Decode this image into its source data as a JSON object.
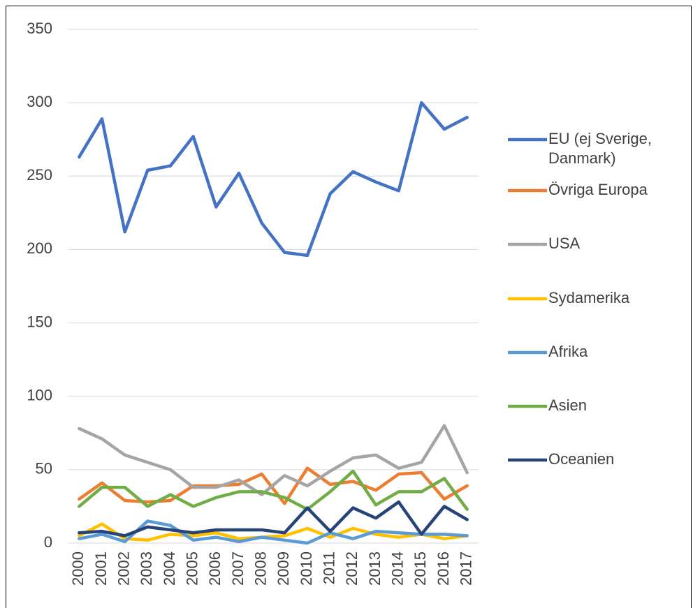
{
  "chart_data": {
    "type": "line",
    "categories": [
      "2000",
      "2001",
      "2002",
      "2003",
      "2004",
      "2005",
      "2006",
      "2007",
      "2008",
      "2009",
      "2010",
      "2011",
      "2012",
      "2013",
      "2014",
      "2015",
      "2016",
      "2017"
    ],
    "series": [
      {
        "name": "EU (ej Sverige, Danmark)",
        "color": "#4472c4",
        "values": [
          263,
          289,
          212,
          254,
          257,
          277,
          229,
          252,
          218,
          198,
          196,
          238,
          253,
          246,
          240,
          300,
          282,
          290
        ]
      },
      {
        "name": "Övriga Europa",
        "color": "#ed7d31",
        "values": [
          30,
          41,
          29,
          28,
          29,
          39,
          39,
          40,
          47,
          27,
          51,
          40,
          42,
          36,
          47,
          48,
          30,
          39
        ]
      },
      {
        "name": "USA",
        "color": "#a5a5a5",
        "values": [
          78,
          71,
          60,
          55,
          50,
          38,
          38,
          43,
          33,
          46,
          39,
          49,
          58,
          60,
          51,
          55,
          80,
          48
        ]
      },
      {
        "name": "Sydamerika",
        "color": "#ffc000",
        "values": [
          5,
          13,
          3,
          2,
          6,
          5,
          7,
          3,
          4,
          5,
          10,
          4,
          10,
          6,
          4,
          6,
          3,
          5
        ]
      },
      {
        "name": "Afrika",
        "color": "#5b9bd5",
        "values": [
          3,
          6,
          1,
          15,
          12,
          2,
          4,
          1,
          4,
          2,
          0,
          7,
          3,
          8,
          7,
          6,
          6,
          5
        ]
      },
      {
        "name": "Asien",
        "color": "#70ad47",
        "values": [
          25,
          38,
          38,
          25,
          33,
          25,
          31,
          35,
          35,
          31,
          23,
          35,
          49,
          26,
          35,
          35,
          44,
          23
        ]
      },
      {
        "name": "Oceanien",
        "color": "#264478",
        "values": [
          7,
          8,
          5,
          11,
          9,
          7,
          9,
          9,
          9,
          7,
          24,
          8,
          24,
          17,
          28,
          6,
          25,
          16
        ]
      }
    ],
    "ylim": [
      0,
      350
    ],
    "yticks": [
      0,
      50,
      100,
      150,
      200,
      250,
      300,
      350
    ],
    "grid": true,
    "legend": "right"
  }
}
